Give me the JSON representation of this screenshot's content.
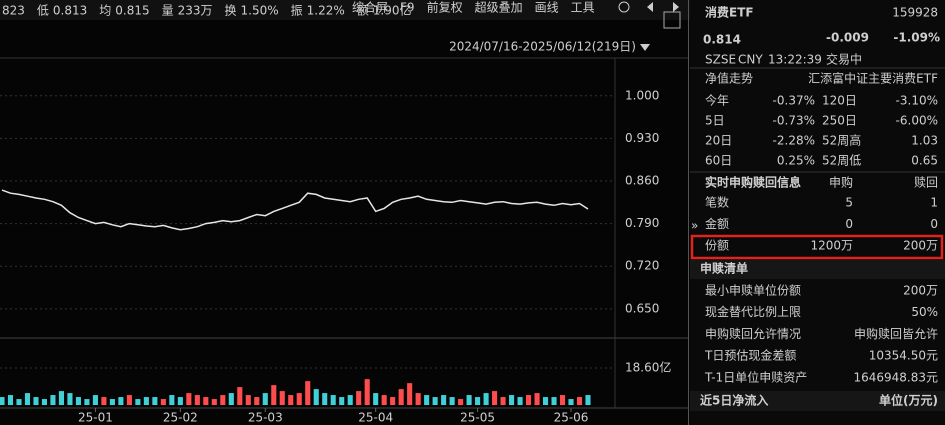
{
  "quote_bar": {
    "items": [
      {
        "value": "823"
      },
      {
        "label": "低",
        "value": "0.813"
      },
      {
        "label": "均",
        "value": "0.815"
      },
      {
        "label": "量",
        "value": "233万"
      },
      {
        "label": "换",
        "value": "1.50%"
      },
      {
        "label": "振",
        "value": "1.22%"
      },
      {
        "label": "额",
        "value": "1.90亿"
      }
    ]
  },
  "toolbar": [
    "综合屏",
    "F9",
    "前复权",
    "超级叠加",
    "画线",
    "工具"
  ],
  "date_range": "2024/07/16-2025/06/12(219日)",
  "chart_data": [
    {
      "type": "line",
      "color": "#e6e6e6",
      "values": [
        0.845,
        0.84,
        0.838,
        0.835,
        0.832,
        0.83,
        0.826,
        0.82,
        0.808,
        0.8,
        0.795,
        0.79,
        0.792,
        0.788,
        0.785,
        0.79,
        0.788,
        0.786,
        0.785,
        0.787,
        0.783,
        0.78,
        0.782,
        0.785,
        0.79,
        0.792,
        0.795,
        0.793,
        0.795,
        0.8,
        0.805,
        0.803,
        0.81,
        0.815,
        0.82,
        0.825,
        0.84,
        0.838,
        0.832,
        0.83,
        0.828,
        0.826,
        0.83,
        0.832,
        0.81,
        0.815,
        0.825,
        0.83,
        0.832,
        0.835,
        0.83,
        0.828,
        0.826,
        0.825,
        0.828,
        0.826,
        0.824,
        0.822,
        0.825,
        0.826,
        0.823,
        0.822,
        0.824,
        0.825,
        0.822,
        0.82,
        0.823,
        0.821,
        0.823,
        0.814
      ],
      "xlim": [
        0,
        69
      ],
      "ylim": [
        0.607,
        1.067
      ],
      "yticks": [
        {
          "value": 1,
          "label": "1.000"
        },
        {
          "value": 0.93,
          "label": "0.930"
        },
        {
          "value": 0.86,
          "label": "0.860"
        },
        {
          "value": 0.79,
          "label": "0.790"
        },
        {
          "value": 0.72,
          "label": "0.720"
        },
        {
          "value": 0.65,
          "label": "0.650"
        }
      ],
      "grid": true
    },
    {
      "type": "bar",
      "up_color": "#ff4d4d",
      "down_color": "#3fd0d8",
      "values": [
        4,
        5,
        3,
        6,
        4,
        3,
        5,
        7,
        6,
        4,
        3,
        5,
        4,
        3,
        4,
        5,
        3,
        4,
        4,
        3,
        5,
        4,
        6,
        5,
        4,
        3,
        5,
        6,
        9,
        5,
        4,
        6,
        10,
        7,
        5,
        6,
        12,
        8,
        6,
        5,
        4,
        5,
        7,
        13,
        6,
        5,
        4,
        8,
        11,
        6,
        5,
        4,
        5,
        4,
        3,
        5,
        4,
        6,
        7,
        4,
        5,
        4,
        5,
        6,
        4,
        4,
        5,
        3,
        4,
        5
      ],
      "xlim": [
        0,
        69
      ],
      "ylim": [
        0,
        32.7
      ],
      "yticks": [
        {
          "value": 18.6,
          "label": "18.60亿"
        }
      ],
      "xticks": [
        {
          "value": 11,
          "label": "25-01"
        },
        {
          "value": 21,
          "label": "25-02"
        },
        {
          "value": 31,
          "label": "25-03"
        },
        {
          "value": 44,
          "label": "25-04"
        },
        {
          "value": 56,
          "label": "25-05"
        },
        {
          "value": 67,
          "label": "25-06"
        }
      ]
    }
  ],
  "quote": {
    "name": "消费ETF",
    "code": "159928",
    "price": "0.814",
    "change": "-0.009",
    "change_pct": "-1.09%",
    "exchange": "SZSE",
    "currency": "CNY",
    "time": "13:22:39",
    "status": "交易中"
  },
  "nav": {
    "label": "净值走势",
    "fund": "汇添富中证主要消费ETF"
  },
  "returns": [
    [
      "今年",
      "-0.37%",
      "120日",
      "-3.10%"
    ],
    [
      "5日",
      "-0.73%",
      "250日",
      "-6.00%"
    ],
    [
      "20日",
      "-2.28%",
      "52周高",
      "1.03"
    ],
    [
      "60日",
      "0.25%",
      "52周低",
      "0.65"
    ]
  ],
  "subscription": {
    "title": "实时申购赎回信息",
    "headers": [
      "申购",
      "赎回"
    ],
    "rows": [
      [
        "笔数",
        "5",
        "1"
      ],
      [
        "金额",
        "0",
        "0"
      ],
      [
        "份额",
        "1200万",
        "200万"
      ]
    ]
  },
  "list": {
    "title": "申赎清单",
    "rows": [
      [
        "最小申赎单位份额",
        "200万"
      ],
      [
        "现金替代比例上限",
        "50%"
      ],
      [
        "申购赎回允许情况",
        "申购赎回皆允许"
      ],
      [
        "T日预估现金差额",
        "10354.50元"
      ],
      [
        "T-1日单位申赎资产",
        "1646948.83元"
      ]
    ]
  },
  "footer": {
    "title": "近5日净流入",
    "unit": "单位(万元)"
  },
  "collapse": "»"
}
